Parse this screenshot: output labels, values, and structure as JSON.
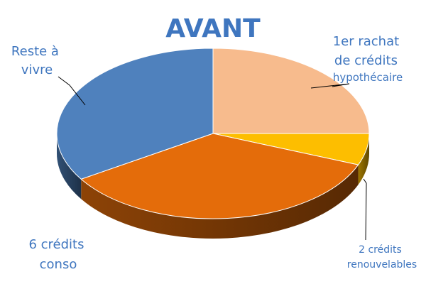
{
  "chart_data": {
    "type": "pie",
    "title": "AVANT",
    "style": "3d-tilted",
    "slices": [
      {
        "name": "1er rachat de crédits hypothécaire",
        "label_lines": [
          "1er rachat",
          "de crédits",
          "hypothécaire"
        ],
        "value": 25,
        "color": "#F7BB8D"
      },
      {
        "name": "2 crédits renouvelables",
        "label_lines": [
          "2 crédits",
          "renouvelables"
        ],
        "value": 6,
        "color": "#FDBE00"
      },
      {
        "name": "6 crédits conso",
        "label_lines": [
          "6 crédits",
          "conso"
        ],
        "value": 35,
        "color": "#E46C0A"
      },
      {
        "name": "Reste à vivre",
        "label_lines": [
          "Reste à",
          "vivre"
        ],
        "value": 34,
        "color": "#4F81BD"
      }
    ]
  },
  "colors": {
    "title": "#3F76BF",
    "label": "#3F76BF",
    "leader": "#000000"
  }
}
